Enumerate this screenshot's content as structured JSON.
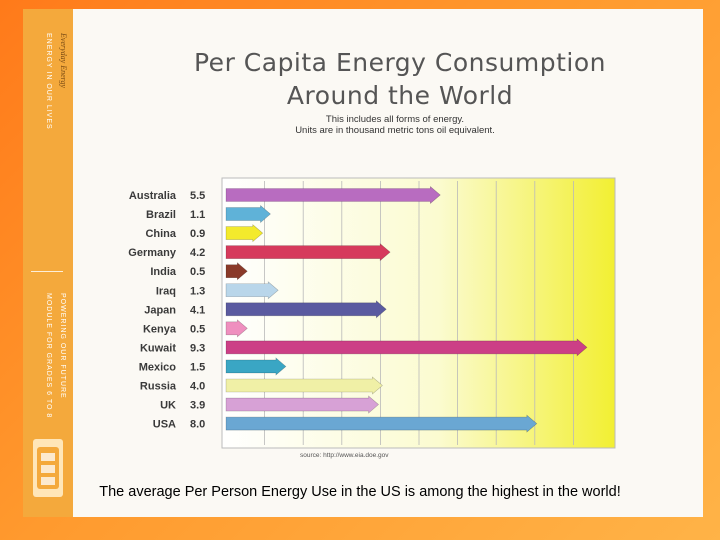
{
  "sidebar": {
    "series_label": "Everyday Energy",
    "topic_label": "ENERGY IN OUR LIVES",
    "program_label": "POWERING OUR FUTURE",
    "module_label": "MODULE FOR GRADES 6 TO 8"
  },
  "caption": "The average Per Person Energy Use in the US is among the highest in the world!",
  "source_text": "source: http://www.eia.doe.gov",
  "colors": {
    "background_orange": "#ff8a22",
    "plot_yellow": "#f4f23a"
  },
  "chart_data": {
    "type": "bar",
    "orientation": "horizontal",
    "title_lines": [
      "Per Capita Energy Consumption",
      "Around the World"
    ],
    "subtitle_lines": [
      "This includes all forms of energy.",
      "Units are in thousand metric tons oil equivalent."
    ],
    "categories": [
      "Australia",
      "Brazil",
      "China",
      "Germany",
      "India",
      "Iraq",
      "Japan",
      "Kenya",
      "Kuwait",
      "Mexico",
      "Russia",
      "UK",
      "USA"
    ],
    "values": [
      5.5,
      1.1,
      0.9,
      4.2,
      0.5,
      1.3,
      4.1,
      0.5,
      9.3,
      1.5,
      4.0,
      3.9,
      8.0
    ],
    "value_labels": [
      "5.5",
      "1.1",
      "0.9",
      "4.2",
      "0.5",
      "1.3",
      "4.1",
      "0.5",
      "9.3",
      "1.5",
      "4.0",
      "3.9",
      "8.0"
    ],
    "bar_colors": [
      "#b86cc0",
      "#5fb2d8",
      "#f3ea2c",
      "#d63a5c",
      "#8a3a2a",
      "#b9d6ea",
      "#5a5aa0",
      "#ef8fbf",
      "#cc3f86",
      "#3aa6c4",
      "#f0f0a6",
      "#d7a1d6",
      "#6aa7d3"
    ],
    "xlim": [
      0,
      10
    ],
    "grid": true
  }
}
